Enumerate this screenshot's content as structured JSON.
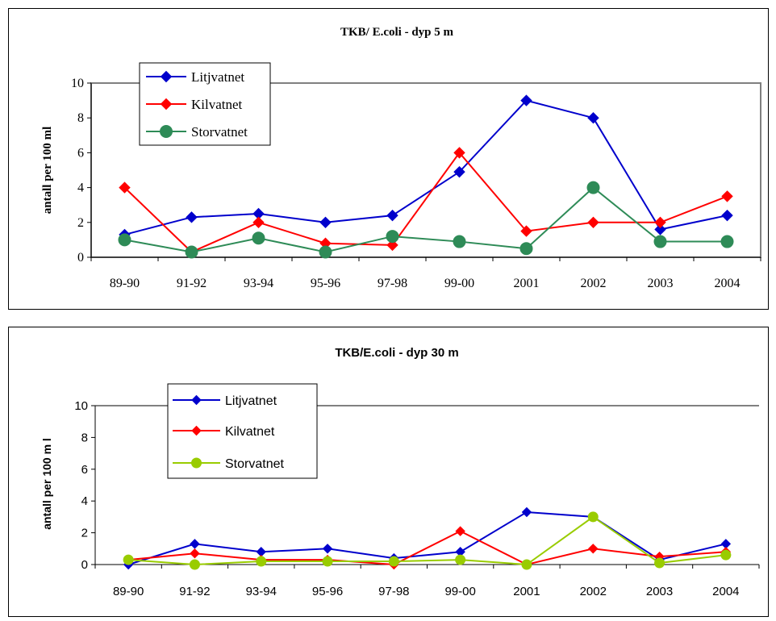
{
  "chart_data": [
    {
      "type": "line",
      "title": "TKB/ E.coli - dyp 5 m",
      "xlabel": "",
      "ylabel": "antall per 100 ml",
      "categories": [
        "89-90",
        "91-92",
        "93-94",
        "95-96",
        "97-98",
        "99-00",
        "2001",
        "2002",
        "2003",
        "2004"
      ],
      "yticks": [
        "0",
        "2",
        "4",
        "6",
        "8",
        "10"
      ],
      "ylim": [
        0,
        10
      ],
      "grid": false,
      "legend_placement": "top-left",
      "series": [
        {
          "name": "Litjvatnet",
          "color": "#0000cc",
          "marker": "diamond",
          "values": [
            1.3,
            2.3,
            2.5,
            2.0,
            2.4,
            4.9,
            9.0,
            8.0,
            1.6,
            2.4
          ]
        },
        {
          "name": "Kilvatnet",
          "color": "#ff0000",
          "marker": "diamond",
          "values": [
            4.0,
            0.3,
            2.0,
            0.8,
            0.7,
            6.0,
            1.5,
            2.0,
            2.0,
            3.5
          ]
        },
        {
          "name": "Storvatnet",
          "color": "#2e8b57",
          "marker": "circle",
          "values": [
            1.0,
            0.3,
            1.1,
            0.3,
            1.2,
            0.9,
            0.5,
            4.0,
            0.9,
            0.9
          ]
        }
      ]
    },
    {
      "type": "line",
      "title": "TKB/E.coli - dyp 30 m",
      "xlabel": "",
      "ylabel": "antall per 100 m l",
      "categories": [
        "89-90",
        "91-92",
        "93-94",
        "95-96",
        "97-98",
        "99-00",
        "2001",
        "2002",
        "2003",
        "2004"
      ],
      "yticks": [
        "0",
        "2",
        "4",
        "6",
        "8",
        "10"
      ],
      "ylim": [
        0,
        10
      ],
      "grid": false,
      "legend_placement": "top-left",
      "series": [
        {
          "name": "Litjvatnet",
          "color": "#0000cc",
          "marker": "diamond",
          "values": [
            0.0,
            1.3,
            0.8,
            1.0,
            0.4,
            0.8,
            3.3,
            3.0,
            0.3,
            1.3
          ]
        },
        {
          "name": "Kilvatnet",
          "color": "#ff0000",
          "marker": "diamond",
          "values": [
            0.3,
            0.7,
            0.3,
            0.3,
            0.0,
            2.1,
            0.0,
            1.0,
            0.5,
            0.8
          ]
        },
        {
          "name": "Storvatnet",
          "color": "#99cc00",
          "marker": "circle",
          "values": [
            0.3,
            0.0,
            0.2,
            0.2,
            0.2,
            0.3,
            0.0,
            3.0,
            0.1,
            0.6
          ]
        }
      ]
    }
  ]
}
